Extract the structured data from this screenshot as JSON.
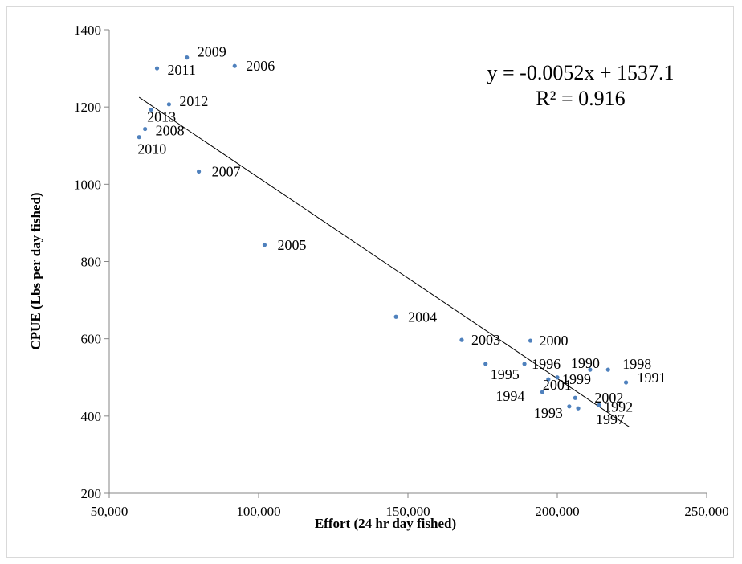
{
  "chart_data": {
    "type": "scatter",
    "xlabel": "Effort (24 hr day fished)",
    "ylabel": "CPUE (Lbs per day fished)",
    "xlim": [
      50000,
      250000
    ],
    "ylim": [
      200,
      1400
    ],
    "x_ticks": [
      50000,
      100000,
      150000,
      200000,
      250000
    ],
    "x_tick_labels": [
      "50,000",
      "100,000",
      "150,000",
      "200,000",
      "250,000"
    ],
    "y_ticks": [
      200,
      400,
      600,
      800,
      1000,
      1200,
      1400
    ],
    "y_tick_labels": [
      "200",
      "400",
      "600",
      "800",
      "1000",
      "1200",
      "1400"
    ],
    "grid": false,
    "marker_color": "#4f81bd",
    "trendline_color": "#000000",
    "trendline": {
      "equation": "y = -0.0052x + 1537.1",
      "r_squared": "R² = 0.916",
      "slope": -0.0052,
      "intercept": 1537.1,
      "x_range": [
        60000,
        224000
      ]
    },
    "points": [
      {
        "label": "1990",
        "x": 211000,
        "y": 520
      },
      {
        "label": "1991",
        "x": 223000,
        "y": 487
      },
      {
        "label": "1992",
        "x": 214000,
        "y": 428
      },
      {
        "label": "1993",
        "x": 204000,
        "y": 425
      },
      {
        "label": "1994",
        "x": 195000,
        "y": 462
      },
      {
        "label": "1995",
        "x": 176000,
        "y": 535
      },
      {
        "label": "1996",
        "x": 189000,
        "y": 535
      },
      {
        "label": "1997",
        "x": 207000,
        "y": 420
      },
      {
        "label": "1998",
        "x": 217000,
        "y": 520
      },
      {
        "label": "1999",
        "x": 200000,
        "y": 500
      },
      {
        "label": "2000",
        "x": 191000,
        "y": 595
      },
      {
        "label": "2001",
        "x": 197000,
        "y": 495
      },
      {
        "label": "2002",
        "x": 206000,
        "y": 447
      },
      {
        "label": "2003",
        "x": 168000,
        "y": 597
      },
      {
        "label": "2004",
        "x": 146000,
        "y": 657
      },
      {
        "label": "2005",
        "x": 102000,
        "y": 843
      },
      {
        "label": "2006",
        "x": 92000,
        "y": 1306
      },
      {
        "label": "2007",
        "x": 80000,
        "y": 1033
      },
      {
        "label": "2008",
        "x": 62000,
        "y": 1143
      },
      {
        "label": "2009",
        "x": 76000,
        "y": 1328
      },
      {
        "label": "2010",
        "x": 60000,
        "y": 1122
      },
      {
        "label": "2011",
        "x": 66000,
        "y": 1300
      },
      {
        "label": "2012",
        "x": 70000,
        "y": 1207
      },
      {
        "label": "2013",
        "x": 64000,
        "y": 1193
      }
    ]
  }
}
